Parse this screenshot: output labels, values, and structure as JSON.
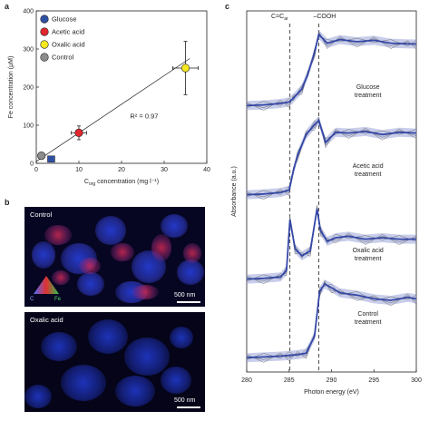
{
  "panels": {
    "a": "a",
    "b": "b",
    "c": "c"
  },
  "chart_data": [
    {
      "type": "scatter",
      "panel": "a",
      "xlabel": "C",
      "xlabel_sub": "org",
      "xlabel_unit": " concentration (mg l⁻¹)",
      "ylabel": "Fe concentration (μM)",
      "xlim": [
        0,
        40
      ],
      "ylim": [
        0,
        400
      ],
      "xticks": [
        0,
        10,
        20,
        30,
        40
      ],
      "yticks": [
        0,
        100,
        200,
        300,
        400
      ],
      "legend": {
        "placement": "top-left"
      },
      "annotation": "R² = 0.97",
      "series": [
        {
          "name": "Glucose",
          "color": "#2e50a3",
          "marker": "square",
          "points": [
            {
              "x": 3.5,
              "y": 10,
              "xerr": 0,
              "yerr": 0
            }
          ]
        },
        {
          "name": "Acetic acid",
          "color": "#e0262e",
          "marker": "circle",
          "points": [
            {
              "x": 10,
              "y": 80,
              "xerr": 1.8,
              "yerr": 18
            }
          ]
        },
        {
          "name": "Oxalic acid",
          "color": "#f4e81e",
          "marker": "circle",
          "points": [
            {
              "x": 35,
              "y": 250,
              "xerr": 3,
              "yerr": 70
            }
          ]
        },
        {
          "name": "Control",
          "color": "#8c8c8c",
          "marker": "circle",
          "points": [
            {
              "x": 1.2,
              "y": 20,
              "xerr": 0.5,
              "yerr": 5
            }
          ]
        }
      ],
      "fit_line": {
        "x": [
          0,
          36
        ],
        "y": [
          5,
          275
        ]
      }
    },
    {
      "type": "line",
      "panel": "c",
      "xlabel": "Photon energy (eV)",
      "ylabel": "Absorbance (a.u.)",
      "xlim": [
        280,
        300
      ],
      "xticks": [
        280,
        285,
        290,
        295,
        300
      ],
      "ref_lines": [
        {
          "label": "C=C",
          "label_sub": "ar",
          "x": 285.1
        },
        {
          "label": "–COOH",
          "x": 288.5
        }
      ],
      "series": [
        {
          "name": "Glucose treatment",
          "label_lines": [
            "Glucose",
            "treatment"
          ],
          "x": [
            280,
            282,
            284,
            285,
            285.5,
            286.5,
            287.2,
            288,
            288.5,
            289.5,
            291,
            293,
            295,
            297,
            299,
            300
          ],
          "y": [
            0.02,
            0.03,
            0.05,
            0.07,
            0.12,
            0.25,
            0.45,
            0.75,
            1.0,
            0.88,
            0.93,
            0.9,
            0.92,
            0.88,
            0.87,
            0.87
          ]
        },
        {
          "name": "Acetic acid treatment",
          "label_lines": [
            "Acetic acid",
            "treatment"
          ],
          "x": [
            280,
            282,
            284,
            285,
            285.5,
            286,
            287,
            288,
            288.5,
            289.3,
            290.5,
            292,
            294,
            296,
            298,
            300
          ],
          "y": [
            0.04,
            0.05,
            0.07,
            0.1,
            0.35,
            0.55,
            0.82,
            0.95,
            1.0,
            0.72,
            0.85,
            0.84,
            0.86,
            0.82,
            0.85,
            0.84
          ]
        },
        {
          "name": "Oxalic acid treatment",
          "label_lines": [
            "Oxalic acid",
            "treatment"
          ],
          "x": [
            280,
            282,
            284,
            284.7,
            285.1,
            285.7,
            286.5,
            287.5,
            288.3,
            288.7,
            289.5,
            290.5,
            292,
            294,
            296,
            298,
            300
          ],
          "y": [
            0.03,
            0.04,
            0.06,
            0.15,
            0.85,
            0.45,
            0.35,
            0.42,
            1.0,
            0.7,
            0.55,
            0.6,
            0.62,
            0.58,
            0.6,
            0.58,
            0.58
          ]
        },
        {
          "name": "Control treatment",
          "label_lines": [
            "Control",
            "treatment"
          ],
          "x": [
            280,
            282,
            284,
            285,
            286,
            287,
            288,
            288.6,
            289.2,
            290,
            291,
            293,
            295,
            297,
            299,
            300
          ],
          "y": [
            0.01,
            0.02,
            0.03,
            0.04,
            0.05,
            0.07,
            0.3,
            0.9,
            1.0,
            0.95,
            0.88,
            0.85,
            0.8,
            0.78,
            0.82,
            0.8
          ]
        }
      ]
    }
  ],
  "images": [
    {
      "panel": "b",
      "label": "Control",
      "scale_bar": "500 nm",
      "colors": {
        "carbon": "#2238c8",
        "iron": "#d02a55",
        "background": "#070622"
      },
      "triangle": {
        "left": "C",
        "right": "Fe",
        "left_color": "#4a6cff",
        "right_color": "#27c24a",
        "top_color": "#e03030"
      }
    },
    {
      "panel": "b",
      "label": "Oxalic acid",
      "scale_bar": "500 nm",
      "colors": {
        "carbon": "#1d33b8",
        "background": "#050418"
      }
    }
  ]
}
